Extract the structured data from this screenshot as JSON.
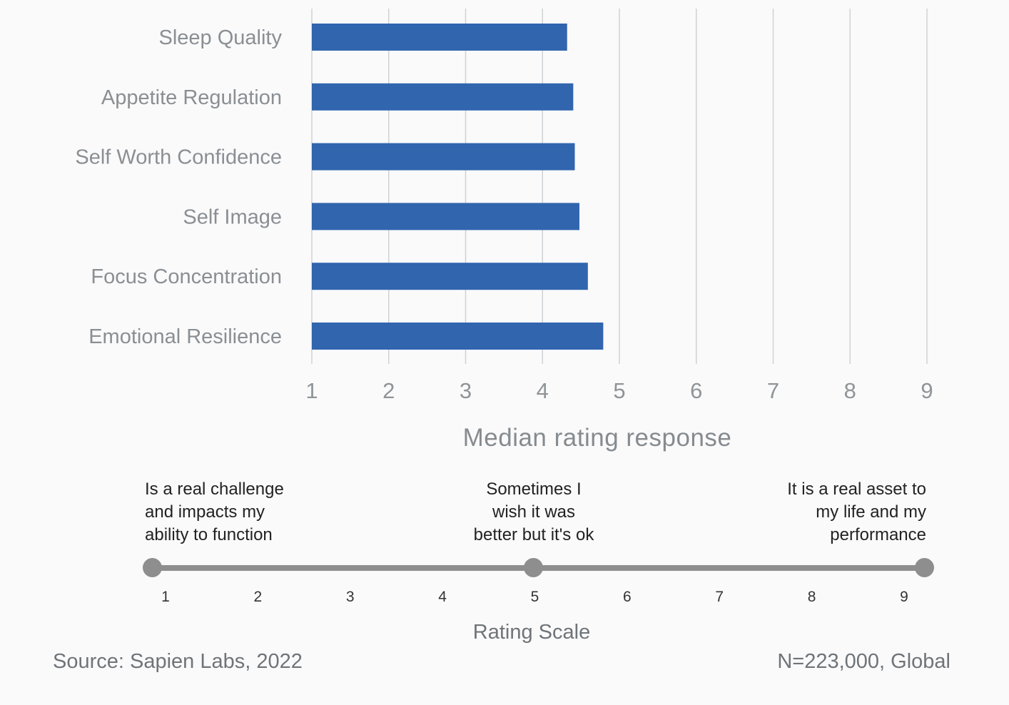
{
  "chart_data": {
    "type": "bar",
    "orientation": "horizontal",
    "categories": [
      "Sleep Quality",
      "Appetite Regulation",
      "Self Worth Confidence",
      "Self Image",
      "Focus Concentration",
      "Emotional Resilience"
    ],
    "values": [
      4.32,
      4.4,
      4.42,
      4.48,
      4.59,
      4.79
    ],
    "xlabel": "Median rating response",
    "xlim": [
      1,
      9
    ],
    "xticks": [
      "1",
      "2",
      "3",
      "4",
      "5",
      "6",
      "7",
      "8",
      "9"
    ],
    "grid": true,
    "bar_color": "#3165ae"
  },
  "rating_scale": {
    "title": "Rating Scale",
    "low_label": "Is a real challenge\nand impacts my\nability to function",
    "mid_label": "Sometimes I\nwish it was\nbetter but it's ok",
    "high_label": "It is a real asset to\nmy life and my\nperformance",
    "numbers": [
      "1",
      "2",
      "3",
      "4",
      "5",
      "6",
      "7",
      "8",
      "9"
    ]
  },
  "footer": {
    "source": "Source: Sapien Labs, 2022",
    "sample": "N=223,000, Global"
  }
}
